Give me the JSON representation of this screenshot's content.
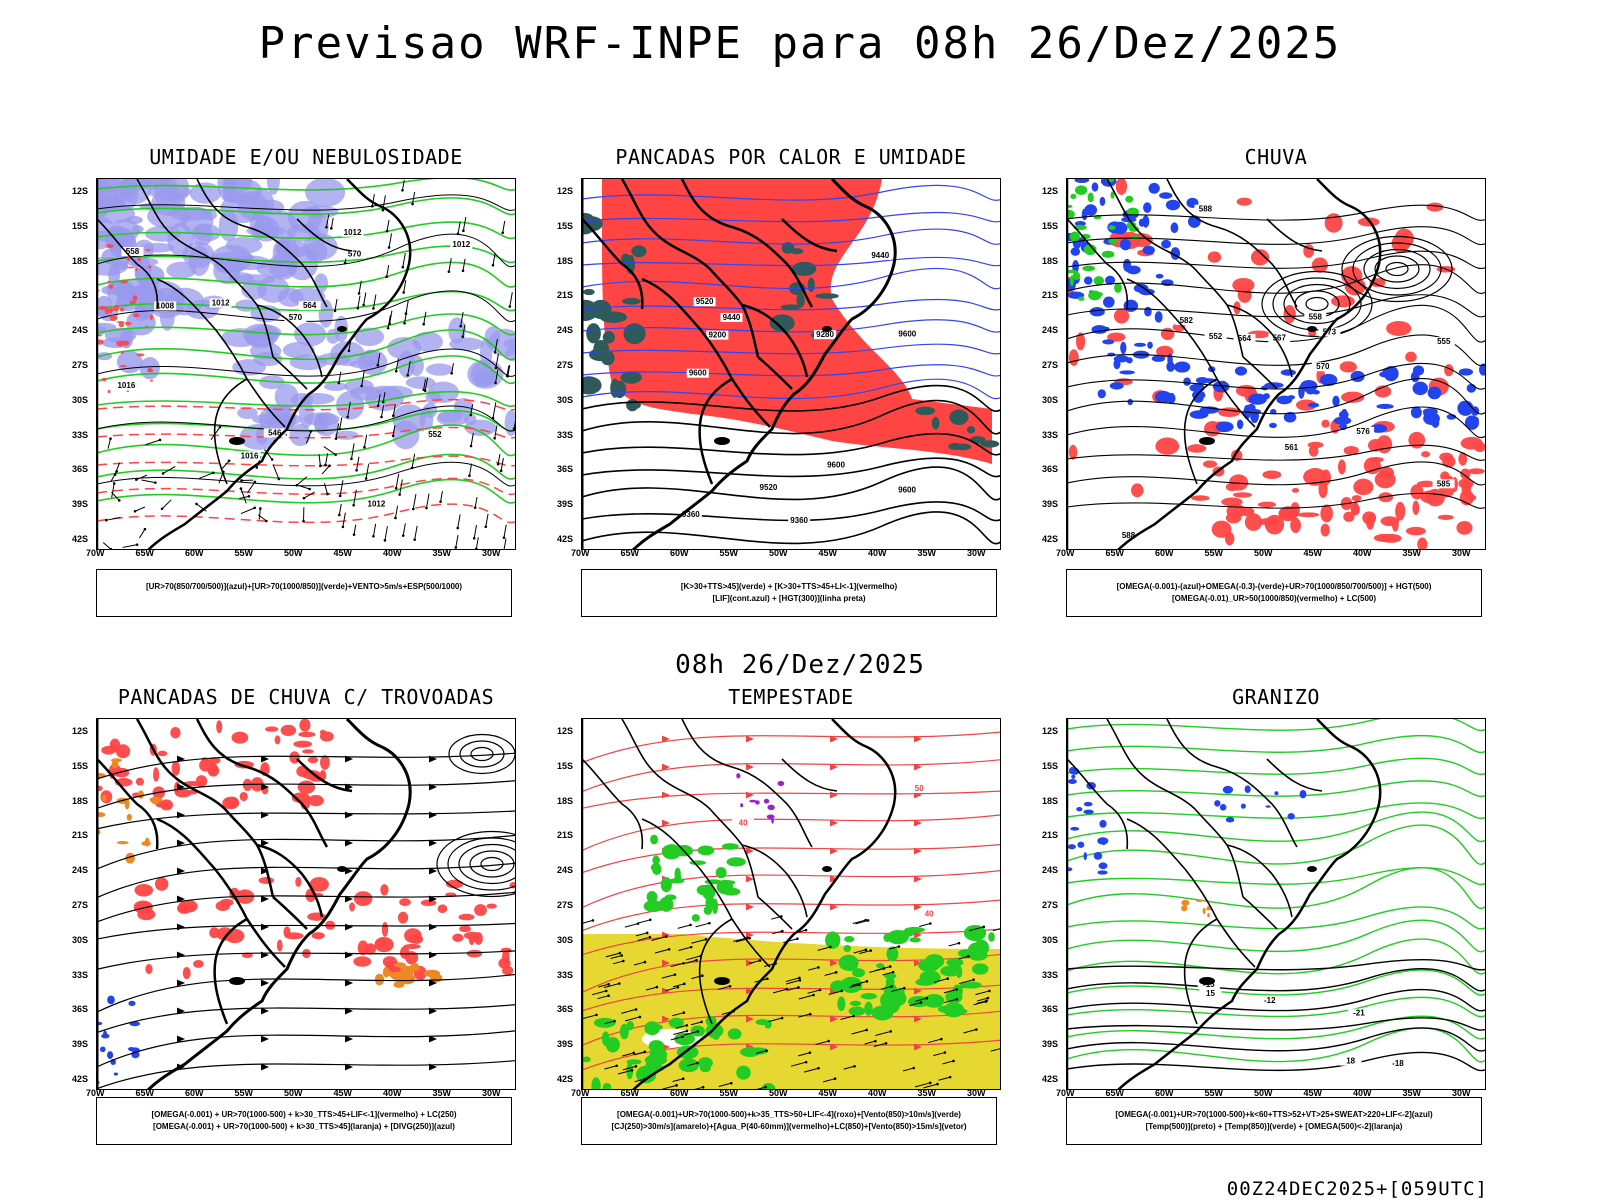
{
  "main_title": "Previsao WRF-INPE  para 08h 26/Dez/2025",
  "mid_title": "08h 26/Dez/2025",
  "footer": "00Z24DEC2025+[059UTC]",
  "lat_ticks": [
    "12S",
    "15S",
    "18S",
    "21S",
    "24S",
    "27S",
    "30S",
    "33S",
    "36S",
    "39S",
    "42S"
  ],
  "lon_ticks": [
    "70W",
    "65W",
    "60W",
    "55W",
    "50W",
    "45W",
    "40W",
    "35W",
    "30W"
  ],
  "colors": {
    "blue": "#9999ee",
    "green": "#22cc22",
    "red": "#ff4444",
    "yellow": "#e6d830",
    "darkteal": "#2e5a5a",
    "purple": "#9922cc",
    "orange": "#ee8822"
  },
  "panels": [
    {
      "title": "UMIDADE E/OU NEBULOSIDADE",
      "legend1": "[UR>70(850/700/500)](azul)+[UR>70(1000/850)](verde)+VENTO>5m/s+ESP(500/1000)",
      "legend2": "",
      "labels": [
        "1012",
        "1016",
        "1016",
        "570",
        "1012",
        "1012",
        "1008",
        "570",
        "564",
        "558",
        "552",
        "546",
        "1012"
      ]
    },
    {
      "title": "PANCADAS POR CALOR E UMIDADE",
      "legend1": "[K>30+TTS>45](verde)  +  [K>30+TTS>45+LI<-1](vermelho)",
      "legend2": "[LIF](cont.azul)  +  [HGT(300)](linha preta)",
      "labels": [
        "9600",
        "9600",
        "9600",
        "9520",
        "9600",
        "9520",
        "9440",
        "9440",
        "9360",
        "9280",
        "9200",
        "9360"
      ]
    },
    {
      "title": "CHUVA",
      "legend1": "[OMEGA(-0.001)-(azul)+OMEGA(-0.3)-(verde)+UR>70(1000/850/700/500)]  +  HGT(500)",
      "legend2": "[OMEGA(-0.01)_UR>50(1000/850)(vermelho)  +  LC(500)",
      "labels": [
        "588",
        "585",
        "588",
        "582",
        "576",
        "573",
        "570",
        "567",
        "564",
        "561",
        "558",
        "555",
        "552"
      ]
    },
    {
      "title": "PANCADAS DE CHUVA C/ TROVOADAS",
      "legend1": "[OMEGA(-0.001)  +  UR>70(1000-500)  +  k>30_TTS>45+LIF<-1](vermelho)  +  LC(250)",
      "legend2": "[OMEGA(-0.001)  +  UR>70(1000-500)  +  k>30_TTS>45](laranja)  +  [DIVG(250)](azul)",
      "labels": []
    },
    {
      "title": "TEMPESTADE",
      "legend1": "[OMEGA(-0.001)+UR>70(1000-500)+k>35_TTS>50+LIF<-4](roxo)+[Vento(850)>10m/s](verde)",
      "legend2": "[CJ(250)>30m/s](amarelo)+[Agua_P(40-60mm)](vermelho)+LC(850)+[Vento(850)>15m/s](vetor)",
      "labels": [
        "40",
        "50",
        "40"
      ]
    },
    {
      "title": "GRANIZO",
      "legend1": "[OMEGA(-0.001)+UR>70(1000-500)+k<60+TTS>52+VT>25+SWEAT>220+LIF<-2](azul)",
      "legend2": "[Temp(500)](preto)  +  [Temp(850)](verde)  +  [OMEGA(500)<-2](laranja)",
      "labels": [
        "-12",
        "-15",
        "-18",
        "-21",
        "15",
        "18"
      ]
    }
  ]
}
